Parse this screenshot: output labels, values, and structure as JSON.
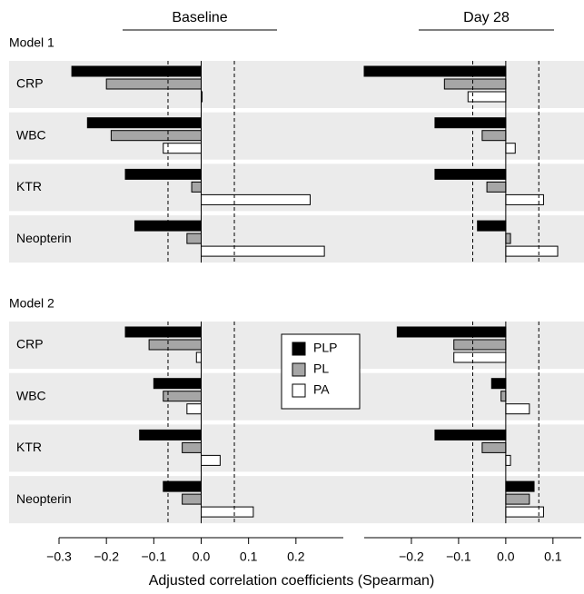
{
  "chart_data": {
    "type": "bar",
    "orientation": "horizontal",
    "xlabel": "Adjusted correlation coefficients (Spearman)",
    "categories": [
      "CRP",
      "WBC",
      "KTR",
      "Neopterin"
    ],
    "series": [
      {
        "name": "PLP",
        "color": "#000000"
      },
      {
        "name": "PL",
        "color": "#a6a6a6"
      },
      {
        "name": "PA",
        "color": "#ffffff"
      }
    ],
    "reference_lines": [
      -0.07,
      0.07
    ],
    "columns": [
      {
        "title": "Baseline",
        "xlim": [
          -0.3,
          0.3
        ],
        "xticks": [
          {
            "value": -0.3,
            "label": "−0.3"
          },
          {
            "value": -0.2,
            "label": "−0.2"
          },
          {
            "value": -0.1,
            "label": "−0.1"
          },
          {
            "value": 0,
            "label": "0.0"
          },
          0.1,
          0.2
        ]
      },
      {
        "title": "Day 28",
        "xlim": [
          -0.3,
          0.16
        ],
        "xticks": [
          {
            "value": -0.2,
            "label": "−0.2"
          },
          {
            "value": -0.1,
            "label": "−0.1"
          },
          {
            "value": 0,
            "label": "0.0"
          },
          0.1
        ]
      }
    ],
    "rows": [
      {
        "title": "Model 1",
        "values": [
          [
            [
              -0.273,
              -0.24,
              -0.16,
              -0.14
            ],
            [
              -0.2,
              -0.19,
              -0.02,
              -0.03
            ],
            [
              0.002,
              -0.08,
              0.23,
              0.26
            ]
          ],
          [
            [
              -0.3,
              -0.15,
              -0.15,
              -0.06
            ],
            [
              -0.13,
              -0.05,
              -0.04,
              0.01
            ],
            [
              -0.08,
              0.02,
              0.08,
              0.11
            ]
          ]
        ]
      },
      {
        "title": "Model 2",
        "values": [
          [
            [
              -0.16,
              -0.1,
              -0.13,
              -0.08
            ],
            [
              -0.11,
              -0.08,
              -0.04,
              -0.04
            ],
            [
              -0.01,
              -0.03,
              0.04,
              0.11
            ]
          ],
          [
            [
              -0.23,
              -0.03,
              -0.15,
              0.06
            ],
            [
              -0.11,
              -0.01,
              -0.05,
              0.05
            ],
            [
              -0.11,
              0.05,
              0.01,
              0.08
            ]
          ]
        ]
      }
    ]
  }
}
